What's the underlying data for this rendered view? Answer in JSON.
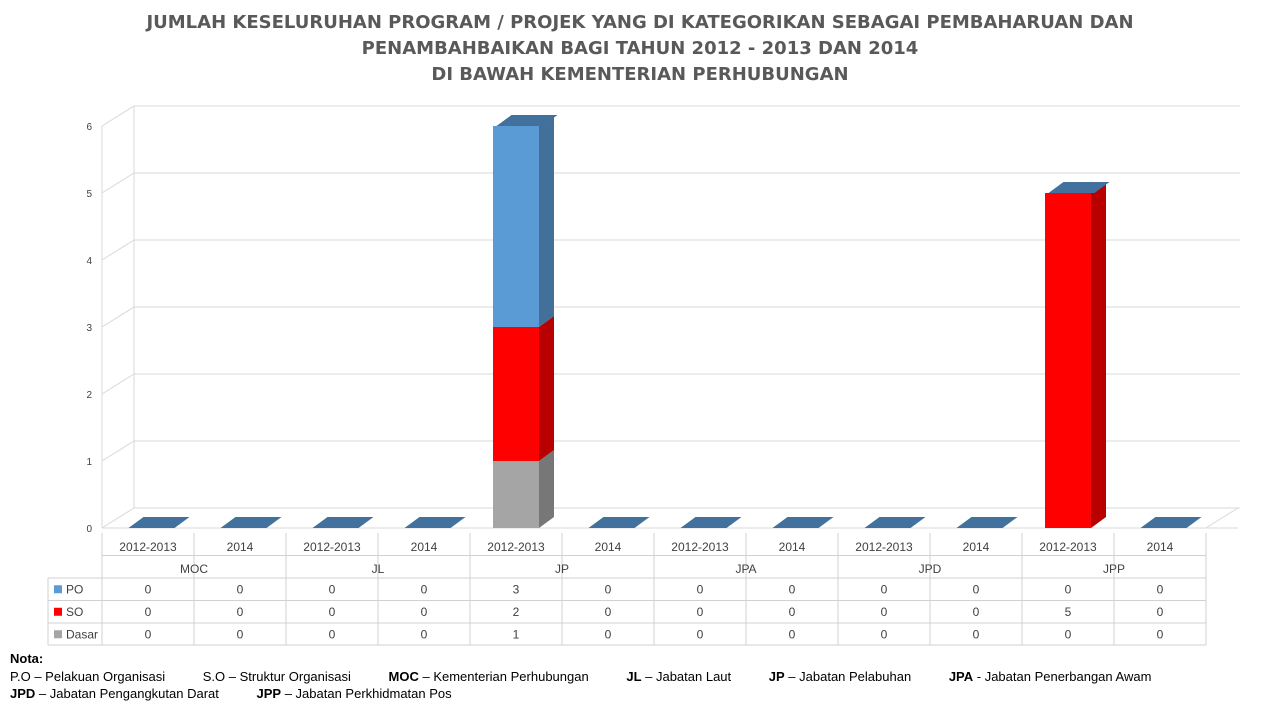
{
  "title_lines": [
    "JUMLAH KESELURUHAN PROGRAM / PROJEK YANG DI KATEGORIKAN SEBAGAI PEMBAHARUAN DAN",
    "PENAMBAHBAIKAN BAGI TAHUN 2012 - 2013 DAN 2014",
    "DI BAWAH KEMENTERIAN  PERHUBUNGAN"
  ],
  "chart_data": {
    "type": "bar",
    "stacked": true,
    "three_d": true,
    "title": "JUMLAH KESELURUHAN PROGRAM / PROJEK YANG DI KATEGORIKAN SEBAGAI PEMBAHARUAN DAN PENAMBAHBAIKAN BAGI TAHUN 2012 - 2013 DAN 2014 DI BAWAH KEMENTERIAN  PERHUBUNGAN",
    "groups": [
      "MOC",
      "JL",
      "JP",
      "JPA",
      "JPD",
      "JPP"
    ],
    "categories": [
      "2012-2013",
      "2014",
      "2012-2013",
      "2014",
      "2012-2013",
      "2014",
      "2012-2013",
      "2014",
      "2012-2013",
      "2014",
      "2012-2013",
      "2014"
    ],
    "series": [
      {
        "name": "PO",
        "color": "#5B9BD5",
        "values": [
          0,
          0,
          0,
          0,
          3,
          0,
          0,
          0,
          0,
          0,
          0,
          0
        ]
      },
      {
        "name": "SO",
        "color": "#FF0000",
        "values": [
          0,
          0,
          0,
          0,
          2,
          0,
          0,
          0,
          0,
          0,
          5,
          0
        ]
      },
      {
        "name": "Dasar",
        "color": "#A5A5A5",
        "values": [
          0,
          0,
          0,
          0,
          1,
          0,
          0,
          0,
          0,
          0,
          0,
          0
        ]
      }
    ],
    "yticks": [
      0,
      1,
      2,
      3,
      4,
      5,
      6
    ],
    "ylim": [
      0,
      6
    ],
    "grid": true,
    "legend": "data-table"
  },
  "notes": {
    "heading": "Nota:",
    "rows": [
      [
        {
          "abbr": "P.O",
          "abbr_bold": false,
          "text": " – Pelakuan Organisasi"
        },
        {
          "abbr": "S.O",
          "abbr_bold": false,
          "text": " – Struktur Organisasi"
        },
        {
          "abbr": "MOC",
          "abbr_bold": true,
          "text": " – Kementerian Perhubungan"
        },
        {
          "abbr": "JL",
          "abbr_bold": true,
          "text": " – Jabatan Laut"
        },
        {
          "abbr": "JP",
          "abbr_bold": true,
          "text": " – Jabatan Pelabuhan"
        },
        {
          "abbr": "JPA",
          "abbr_bold": true,
          "text": " -  Jabatan Penerbangan Awam"
        }
      ],
      [
        {
          "abbr": "JPD",
          "abbr_bold": true,
          "text": " – Jabatan Pengangkutan Darat"
        },
        {
          "abbr": "JPP",
          "abbr_bold": true,
          "text": " – Jabatan Perkhidmatan Pos"
        }
      ]
    ]
  }
}
